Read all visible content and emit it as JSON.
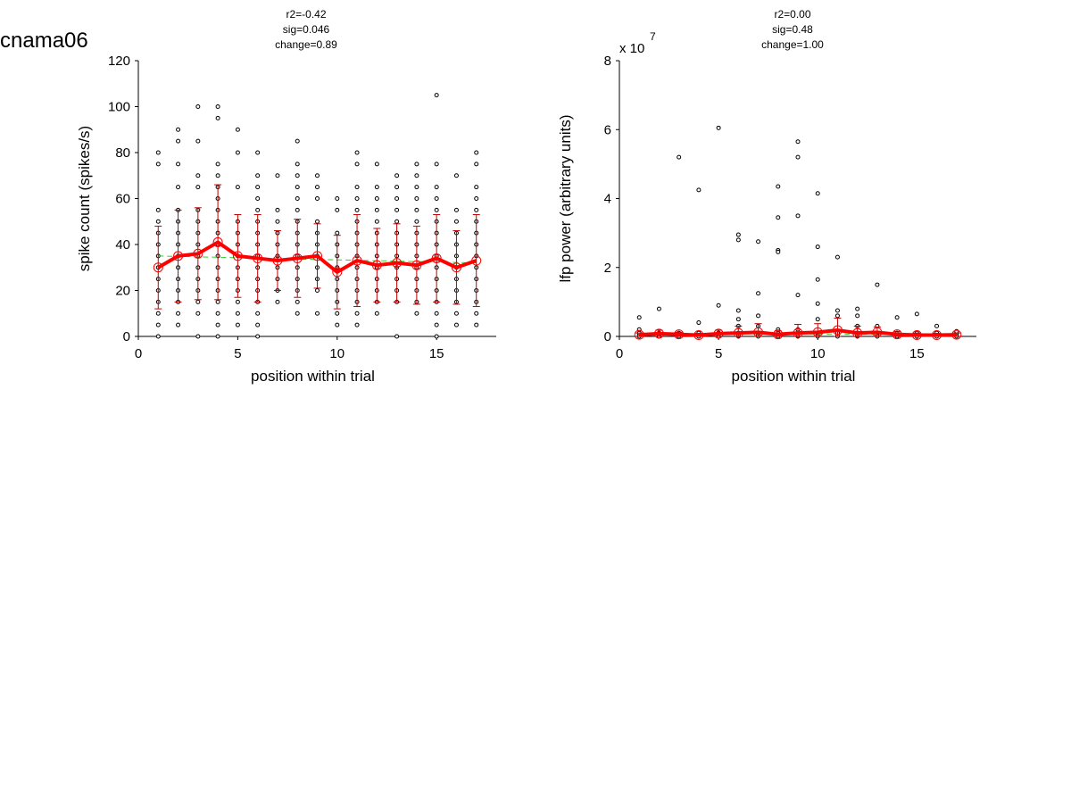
{
  "figure_label": "cnama06",
  "colors": {
    "mean": "#ff0000",
    "errorbar": "#c00000",
    "fit": "#33cc33",
    "point": "#000000"
  },
  "chart_data": [
    {
      "type": "scatter",
      "stats": [
        "r2=-0.42",
        "sig=0.046",
        "change=0.89"
      ],
      "xlabel": "position within trial",
      "ylabel": "spike count (spikes/s)",
      "exponent_label": "",
      "xlim": [
        0,
        18
      ],
      "ylim": [
        0,
        120
      ],
      "xticks": [
        0,
        5,
        10,
        15
      ],
      "yticks": [
        0,
        20,
        40,
        60,
        80,
        100,
        120
      ],
      "mean": {
        "x": [
          1,
          2,
          3,
          4,
          5,
          6,
          7,
          8,
          9,
          10,
          11,
          12,
          13,
          14,
          15,
          16,
          17
        ],
        "y": [
          30,
          35,
          36,
          41,
          35,
          34,
          33,
          34,
          35,
          28,
          33,
          31,
          32,
          31,
          34,
          30,
          33
        ],
        "err": [
          18,
          20,
          20,
          25,
          18,
          19,
          13,
          17,
          14,
          16,
          20,
          16,
          17,
          17,
          19,
          16,
          20
        ]
      },
      "fit": {
        "x": [
          1,
          17
        ],
        "y": [
          35,
          32
        ]
      },
      "points": [
        {
          "x": 1,
          "y": [
            0,
            5,
            10,
            15,
            20,
            25,
            30,
            35,
            40,
            45,
            50,
            55,
            75,
            80
          ]
        },
        {
          "x": 2,
          "y": [
            5,
            10,
            15,
            20,
            25,
            30,
            35,
            40,
            45,
            50,
            55,
            65,
            75,
            85,
            90
          ]
        },
        {
          "x": 3,
          "y": [
            0,
            10,
            15,
            20,
            25,
            30,
            35,
            40,
            45,
            50,
            55,
            65,
            70,
            85,
            100
          ]
        },
        {
          "x": 4,
          "y": [
            0,
            5,
            10,
            15,
            20,
            25,
            30,
            35,
            40,
            45,
            50,
            55,
            60,
            65,
            70,
            75,
            95,
            100
          ]
        },
        {
          "x": 5,
          "y": [
            5,
            10,
            15,
            20,
            25,
            30,
            35,
            40,
            45,
            50,
            65,
            80,
            90
          ]
        },
        {
          "x": 6,
          "y": [
            0,
            5,
            10,
            15,
            20,
            25,
            30,
            35,
            40,
            45,
            50,
            55,
            60,
            65,
            70,
            80
          ]
        },
        {
          "x": 7,
          "y": [
            15,
            20,
            25,
            30,
            35,
            40,
            45,
            50,
            55,
            70
          ]
        },
        {
          "x": 8,
          "y": [
            10,
            15,
            20,
            25,
            30,
            35,
            40,
            45,
            50,
            55,
            60,
            65,
            70,
            75,
            85
          ]
        },
        {
          "x": 9,
          "y": [
            10,
            20,
            25,
            30,
            35,
            40,
            45,
            50,
            60,
            65,
            70
          ]
        },
        {
          "x": 10,
          "y": [
            5,
            10,
            15,
            20,
            25,
            30,
            35,
            40,
            45,
            55,
            60
          ]
        },
        {
          "x": 11,
          "y": [
            5,
            10,
            15,
            20,
            25,
            30,
            35,
            40,
            45,
            50,
            55,
            60,
            65,
            75,
            80
          ]
        },
        {
          "x": 12,
          "y": [
            10,
            15,
            20,
            25,
            30,
            35,
            40,
            45,
            50,
            55,
            60,
            65,
            75
          ]
        },
        {
          "x": 13,
          "y": [
            0,
            15,
            20,
            25,
            30,
            35,
            40,
            45,
            50,
            55,
            60,
            65,
            70
          ]
        },
        {
          "x": 14,
          "y": [
            10,
            15,
            20,
            25,
            30,
            35,
            40,
            45,
            50,
            55,
            60,
            65,
            70,
            75
          ]
        },
        {
          "x": 15,
          "y": [
            0,
            5,
            10,
            15,
            20,
            25,
            30,
            35,
            40,
            45,
            50,
            55,
            60,
            65,
            75,
            105
          ]
        },
        {
          "x": 16,
          "y": [
            5,
            10,
            15,
            20,
            25,
            30,
            35,
            40,
            45,
            50,
            55,
            70
          ]
        },
        {
          "x": 17,
          "y": [
            5,
            10,
            15,
            20,
            25,
            30,
            35,
            40,
            45,
            50,
            55,
            60,
            65,
            75,
            80
          ]
        }
      ]
    },
    {
      "type": "scatter",
      "stats": [
        "r2=0.00",
        "sig=0.48",
        "change=1.00"
      ],
      "xlabel": "position within trial",
      "ylabel": "lfp power (arbitrary units)",
      "exponent_label": "x 10",
      "exponent_power": "7",
      "xlim": [
        0,
        18
      ],
      "ylim": [
        0,
        8
      ],
      "xticks": [
        0,
        5,
        10,
        15
      ],
      "yticks": [
        0,
        2,
        4,
        6,
        8
      ],
      "mean": {
        "x": [
          1,
          2,
          3,
          4,
          5,
          6,
          7,
          8,
          9,
          10,
          11,
          12,
          13,
          14,
          15,
          16,
          17
        ],
        "y": [
          0.05,
          0.08,
          0.06,
          0.04,
          0.08,
          0.1,
          0.12,
          0.06,
          0.1,
          0.12,
          0.18,
          0.1,
          0.12,
          0.06,
          0.04,
          0.04,
          0.05
        ],
        "err": [
          0.05,
          0.1,
          0.06,
          0.05,
          0.1,
          0.2,
          0.25,
          0.1,
          0.25,
          0.25,
          0.35,
          0.2,
          0.15,
          0.08,
          0.06,
          0.05,
          0.05
        ]
      },
      "fit": {
        "x": [
          1,
          17
        ],
        "y": [
          0.08,
          0.06
        ]
      },
      "points": [
        {
          "x": 1,
          "y": [
            0,
            0.05,
            0.1,
            0.2,
            0.55
          ]
        },
        {
          "x": 2,
          "y": [
            0,
            0.05,
            0.1,
            0.8
          ]
        },
        {
          "x": 3,
          "y": [
            0,
            0.05,
            0.1,
            5.2
          ]
        },
        {
          "x": 4,
          "y": [
            0,
            0.05,
            0.1,
            0.4,
            4.25
          ]
        },
        {
          "x": 5,
          "y": [
            0,
            0.05,
            0.1,
            0.9,
            6.05
          ]
        },
        {
          "x": 6,
          "y": [
            0,
            0.05,
            0.1,
            0.3,
            0.5,
            0.75,
            2.8,
            2.95
          ]
        },
        {
          "x": 7,
          "y": [
            0,
            0.05,
            0.1,
            0.3,
            0.6,
            1.25,
            2.75
          ]
        },
        {
          "x": 8,
          "y": [
            0,
            0.05,
            0.1,
            0.2,
            2.5,
            2.45,
            3.45,
            4.35
          ]
        },
        {
          "x": 9,
          "y": [
            0,
            0.05,
            0.1,
            0.2,
            1.2,
            3.5,
            5.2,
            5.65
          ]
        },
        {
          "x": 10,
          "y": [
            0,
            0.05,
            0.1,
            0.5,
            0.95,
            1.65,
            2.6,
            4.15
          ]
        },
        {
          "x": 11,
          "y": [
            0,
            0.05,
            0.1,
            0.6,
            0.75,
            2.3
          ]
        },
        {
          "x": 12,
          "y": [
            0,
            0.05,
            0.1,
            0.3,
            0.6,
            0.8
          ]
        },
        {
          "x": 13,
          "y": [
            0,
            0.05,
            0.1,
            0.3,
            1.5
          ]
        },
        {
          "x": 14,
          "y": [
            0,
            0.05,
            0.1,
            0.55
          ]
        },
        {
          "x": 15,
          "y": [
            0,
            0.05,
            0.1,
            0.65
          ]
        },
        {
          "x": 16,
          "y": [
            0,
            0.05,
            0.1,
            0.3
          ]
        },
        {
          "x": 17,
          "y": [
            0,
            0.05,
            0.1,
            0.15
          ]
        }
      ]
    }
  ]
}
